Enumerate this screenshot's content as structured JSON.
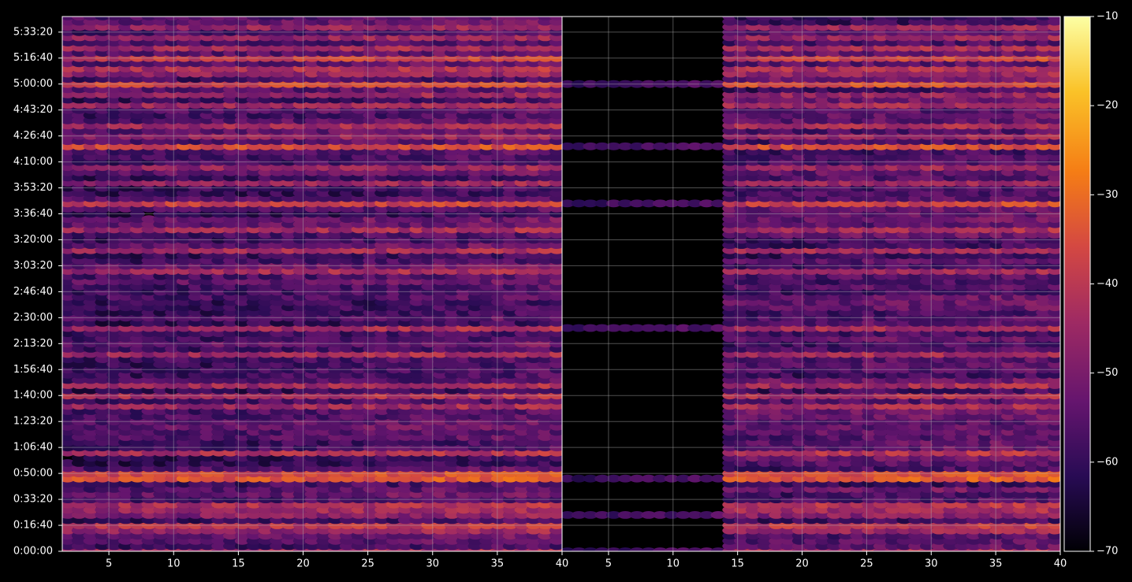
{
  "chart_data": {
    "type": "heatmap",
    "title": "",
    "xlabel": "",
    "ylabel": "",
    "background": "#000000",
    "axis_color": "#ffffff",
    "grid": true,
    "colormap": "inferno",
    "colormap_stops": [
      "#000004",
      "#280b54",
      "#65156e",
      "#9f2a63",
      "#d44842",
      "#f57d15",
      "#fac228",
      "#fcffa4"
    ],
    "panels": [
      {
        "name": "left",
        "xlim": [
          1.4,
          40
        ],
        "xticks": [
          5,
          10,
          15,
          20,
          25,
          30,
          35,
          40
        ],
        "x_range": [
          1.8,
          39.6
        ],
        "x_step": 0.9
      },
      {
        "name": "right",
        "xlim": [
          1.4,
          40
        ],
        "xticks": [
          5,
          10,
          15,
          20,
          25,
          30,
          35,
          40
        ],
        "x_range": [
          1.8,
          39.6
        ],
        "x_step": 0.9
      }
    ],
    "y_axis": {
      "unit": "seconds",
      "ylim": [
        0,
        20600
      ],
      "row_step": 200,
      "tick_values": [
        0,
        1000,
        2000,
        3000,
        4000,
        5000,
        6000,
        7000,
        8000,
        9000,
        10000,
        11000,
        12000,
        13000,
        14000,
        15000,
        16000,
        17000,
        18000,
        19000,
        20000
      ],
      "tick_labels": [
        "0:00:00",
        "0:16:40",
        "0:33:20",
        "0:50:00",
        "1:06:40",
        "1:23:20",
        "1:40:00",
        "1:56:40",
        "2:13:20",
        "2:30:00",
        "2:46:40",
        "3:03:20",
        "3:20:00",
        "3:36:40",
        "3:53:20",
        "4:10:00",
        "4:26:40",
        "4:43:20",
        "5:00:00",
        "5:16:40",
        "5:33:20"
      ]
    },
    "colorbar": {
      "vmin": -70,
      "vmax": -10,
      "ticks": [
        -10,
        -20,
        -30,
        -40,
        -50,
        -60,
        -70
      ],
      "tick_labels": [
        "−10",
        "−20",
        "−30",
        "−40",
        "−50",
        "−60",
        "−70"
      ]
    },
    "bright_rows_db": {
      "0": -46,
      "300": -50,
      "500": -42,
      "800": -48,
      "1000": -42,
      "1400": -50,
      "1600": -46,
      "1800": -44,
      "2300": -44,
      "2800": -36,
      "3000": -38,
      "3300": -50,
      "3800": -44,
      "4100": -48,
      "4700": -48,
      "4900": -42,
      "5300": -38,
      "5600": -46,
      "6000": -44,
      "6400": -46,
      "6700": -48,
      "7300": -40,
      "7600": -46,
      "7900": -48,
      "8100": -38,
      "8600": -46,
      "8900": -48,
      "9300": -42,
      "9700": -48,
      "10100": -48,
      "10500": -40,
      "10800": -46,
      "11100": -48,
      "11600": -46,
      "11900": -48,
      "12400": -46,
      "12700": -48,
      "13100": -40,
      "13400": -40,
      "13700": -44,
      "14200": -48,
      "14500": -44,
      "14800": -48,
      "15300": -48,
      "15600": -38,
      "16000": -48,
      "16400": -46,
      "16700": -48,
      "17200": -46,
      "17600": -48,
      "18000": -38,
      "18400": -48,
      "18600": -44,
      "19000": -40,
      "19400": -46,
      "19800": -48,
      "20200": -48,
      "20500": -46
    },
    "right_panel_gap": {
      "description_rows_active": [
        0,
        1400,
        2800,
        5300,
        8100,
        8600,
        13100,
        13400,
        15600,
        18000
      ],
      "x_start_of_full_activity": 14.0
    }
  }
}
